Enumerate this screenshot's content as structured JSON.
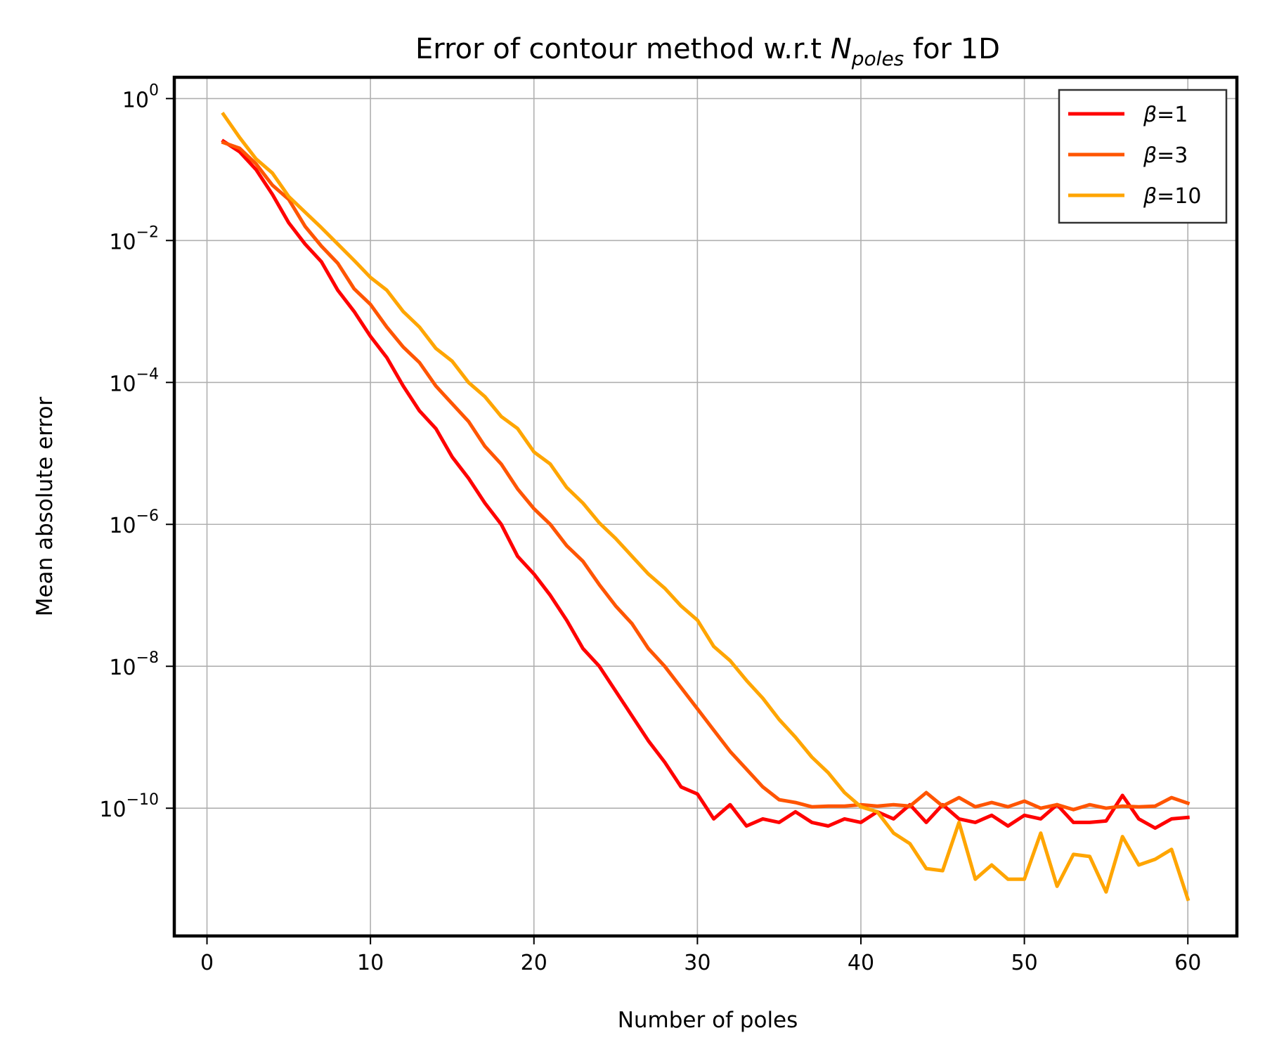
{
  "chart_data": {
    "type": "line",
    "title_parts": {
      "prefix": "Error of contour method w.r.t ",
      "symbol": "N",
      "subscript": "poles",
      "suffix": " for 1D"
    },
    "xlabel": "Number of poles",
    "ylabel": "Mean absolute error",
    "xlim": [
      -2,
      63
    ],
    "ylim_log10": [
      -11.8,
      0.3
    ],
    "y_scale": "log",
    "grid": true,
    "legend_position": "top-right",
    "x_ticks": [
      {
        "value": 0,
        "label": "0"
      },
      {
        "value": 10,
        "label": "10"
      },
      {
        "value": 20,
        "label": "20"
      },
      {
        "value": 30,
        "label": "30"
      },
      {
        "value": 40,
        "label": "40"
      },
      {
        "value": 50,
        "label": "50"
      },
      {
        "value": 60,
        "label": "60"
      }
    ],
    "y_ticks": [
      {
        "exp": 0,
        "base": "10",
        "power": "0"
      },
      {
        "exp": -2,
        "base": "10",
        "power": "−2"
      },
      {
        "exp": -4,
        "base": "10",
        "power": "−4"
      },
      {
        "exp": -6,
        "base": "10",
        "power": "−6"
      },
      {
        "exp": -8,
        "base": "10",
        "power": "−8"
      },
      {
        "exp": -10,
        "base": "10",
        "power": "−10"
      }
    ],
    "x": [
      1,
      2,
      3,
      4,
      5,
      6,
      7,
      8,
      9,
      10,
      11,
      12,
      13,
      14,
      15,
      16,
      17,
      18,
      19,
      20,
      21,
      22,
      23,
      24,
      25,
      26,
      27,
      28,
      29,
      30,
      31,
      32,
      33,
      34,
      35,
      36,
      37,
      38,
      39,
      40,
      41,
      42,
      43,
      44,
      45,
      46,
      47,
      48,
      49,
      50,
      51,
      52,
      53,
      54,
      55,
      56,
      57,
      58,
      59,
      60
    ],
    "series": [
      {
        "legend_symbol": "β",
        "legend_value": "=1",
        "color": "#ff0000",
        "log10_values": [
          -0.6,
          -0.75,
          -1.0,
          -1.35,
          -1.75,
          -2.05,
          -2.3,
          -2.7,
          -3.0,
          -3.35,
          -3.65,
          -4.05,
          -4.4,
          -4.65,
          -5.05,
          -5.35,
          -5.7,
          -6.0,
          -6.45,
          -6.7,
          -7.0,
          -7.35,
          -7.75,
          -8.0,
          -8.35,
          -8.7,
          -9.05,
          -9.35,
          -9.7,
          -9.8,
          -10.15,
          -9.95,
          -10.25,
          -10.15,
          -10.2,
          -10.05,
          -10.2,
          -10.25,
          -10.15,
          -10.2,
          -10.05,
          -10.15,
          -9.95,
          -10.2,
          -9.95,
          -10.15,
          -10.2,
          -10.1,
          -10.25,
          -10.1,
          -10.15,
          -9.95,
          -10.2,
          -10.2,
          -10.18,
          -9.82,
          -10.15,
          -10.28,
          -10.15,
          -10.13
        ]
      },
      {
        "legend_symbol": "β",
        "legend_value": "=3",
        "color": "#ff5500",
        "log10_values": [
          -0.62,
          -0.7,
          -0.92,
          -1.22,
          -1.42,
          -1.8,
          -2.08,
          -2.32,
          -2.68,
          -2.9,
          -3.22,
          -3.5,
          -3.72,
          -4.05,
          -4.3,
          -4.55,
          -4.9,
          -5.15,
          -5.5,
          -5.78,
          -6.0,
          -6.3,
          -6.52,
          -6.85,
          -7.15,
          -7.4,
          -7.75,
          -8.0,
          -8.3,
          -8.6,
          -8.9,
          -9.2,
          -9.45,
          -9.7,
          -9.88,
          -9.92,
          -9.98,
          -9.97,
          -9.97,
          -9.95,
          -9.97,
          -9.95,
          -9.97,
          -9.78,
          -9.97,
          -9.85,
          -9.98,
          -9.92,
          -9.98,
          -9.9,
          -10.0,
          -9.95,
          -10.02,
          -9.95,
          -10.0,
          -9.97,
          -9.98,
          -9.97,
          -9.85,
          -9.93
        ]
      },
      {
        "legend_symbol": "β",
        "legend_value": "=10",
        "color": "#ffa500",
        "log10_values": [
          -0.22,
          -0.55,
          -0.85,
          -1.05,
          -1.38,
          -1.6,
          -1.82,
          -2.05,
          -2.28,
          -2.52,
          -2.7,
          -3.0,
          -3.22,
          -3.52,
          -3.7,
          -4.0,
          -4.2,
          -4.48,
          -4.65,
          -4.98,
          -5.15,
          -5.48,
          -5.7,
          -5.98,
          -6.2,
          -6.45,
          -6.7,
          -6.9,
          -7.15,
          -7.35,
          -7.72,
          -7.92,
          -8.2,
          -8.45,
          -8.75,
          -9.0,
          -9.28,
          -9.5,
          -9.78,
          -9.98,
          -10.05,
          -10.35,
          -10.5,
          -10.85,
          -10.88,
          -10.2,
          -11.0,
          -10.8,
          -11.0,
          -11.0,
          -10.35,
          -11.1,
          -10.65,
          -10.68,
          -11.18,
          -10.4,
          -10.8,
          -10.72,
          -10.58,
          -11.28
        ]
      }
    ]
  }
}
